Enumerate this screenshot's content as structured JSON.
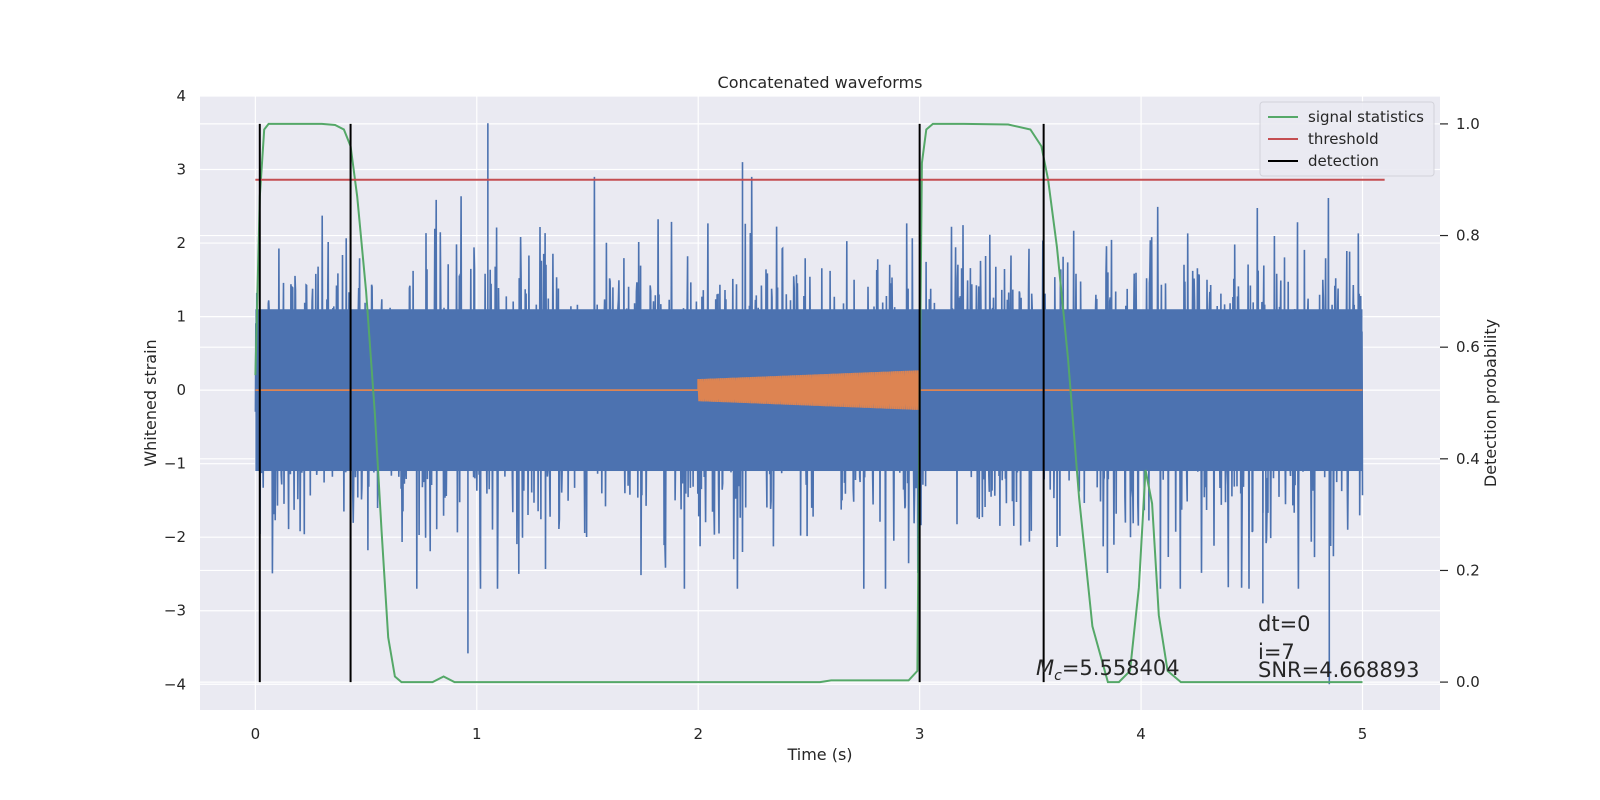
{
  "chart_data": {
    "type": "line",
    "title": "Concatenated waveforms",
    "xlabel": "Time (s)",
    "ylabel_left": "Whitened strain",
    "ylabel_right": "Detection probability",
    "xlim": [
      -0.25,
      5.35
    ],
    "ylim_left": [
      -4.35,
      4.0
    ],
    "ylim_right": [
      -0.05,
      1.05
    ],
    "x_ticks": [
      0,
      1,
      2,
      3,
      4,
      5
    ],
    "y_left_ticks": [
      4,
      3,
      2,
      1,
      0,
      -1,
      -2,
      -3,
      -4
    ],
    "y_left_tick_labels": [
      "4",
      "3",
      "2",
      "1",
      "0",
      "−1",
      "−2",
      "−3",
      "−4"
    ],
    "y_right_ticks": [
      1.0,
      0.8,
      0.6,
      0.4,
      0.2,
      0.0
    ],
    "y_right_tick_labels": [
      "1.0",
      "0.8",
      "0.6",
      "0.4",
      "0.2",
      "0.0"
    ],
    "grid": true,
    "legend_position": "top-right",
    "colors": {
      "background": "#eaeaf2",
      "strain": "#4c72b0",
      "template": "#dd8452",
      "signal_statistics": "#55a868",
      "threshold": "#c44e52",
      "detection": "#000000"
    },
    "series": [
      {
        "name": "signal statistics",
        "axis": "right",
        "x": [
          0.0,
          0.02,
          0.04,
          0.06,
          0.1,
          0.2,
          0.3,
          0.36,
          0.4,
          0.43,
          0.46,
          0.5,
          0.54,
          0.57,
          0.6,
          0.63,
          0.66,
          0.7,
          0.8,
          0.85,
          0.9,
          1.0,
          2.0,
          2.55,
          2.6,
          2.95,
          2.99,
          3.0,
          3.01,
          3.03,
          3.06,
          3.2,
          3.4,
          3.5,
          3.55,
          3.58,
          3.62,
          3.67,
          3.72,
          3.78,
          3.85,
          3.9,
          3.95,
          3.99,
          4.02,
          4.05,
          4.08,
          4.12,
          4.18,
          4.25,
          5.0
        ],
        "y": [
          0.55,
          0.87,
          0.99,
          1.0,
          1.0,
          1.0,
          1.0,
          0.998,
          0.99,
          0.96,
          0.87,
          0.7,
          0.48,
          0.27,
          0.08,
          0.01,
          0.0,
          0.0,
          0.0,
          0.01,
          0.0,
          0.0,
          0.0,
          0.0,
          0.003,
          0.003,
          0.02,
          0.5,
          0.93,
          0.99,
          1.0,
          1.0,
          0.999,
          0.99,
          0.96,
          0.9,
          0.78,
          0.58,
          0.33,
          0.1,
          0.0,
          0.0,
          0.02,
          0.17,
          0.38,
          0.32,
          0.12,
          0.02,
          0.0,
          0.0,
          0.0
        ]
      },
      {
        "name": "threshold",
        "axis": "right",
        "x": [
          0.0,
          5.1
        ],
        "y": [
          0.9,
          0.9
        ]
      },
      {
        "name": "detection",
        "axis": "right",
        "vlines_x": [
          0.02,
          0.43,
          3.0,
          3.56
        ],
        "ymin": 0.0,
        "ymax": 1.0
      },
      {
        "axis": "left",
        "description_key": "whitened_strain",
        "x_range": [
          0,
          5
        ],
        "envelope_quiet": 1.1,
        "spike_examples": [
          {
            "x": 1.05,
            "y": 3.63
          },
          {
            "x": 0.96,
            "y": -3.58
          },
          {
            "x": 4.85,
            "y": -4.0
          },
          {
            "x": 2.2,
            "y": 3.1
          },
          {
            "x": 4.55,
            "y": -2.9
          }
        ]
      },
      {
        "axis": "left",
        "description_key": "template_waveform",
        "x": [
          0.0,
          2.0,
          2.0,
          3.0,
          3.0,
          5.0
        ],
        "amplitude_start": 0.15,
        "amplitude_end": 0.27
      }
    ],
    "annotations": {
      "chirp_mass_symbol": "M",
      "chirp_mass_sub": "c",
      "chirp_mass_value": "=5.558404",
      "dt": "dt=0",
      "i": "i=7",
      "snr": "SNR=4.668893"
    }
  }
}
